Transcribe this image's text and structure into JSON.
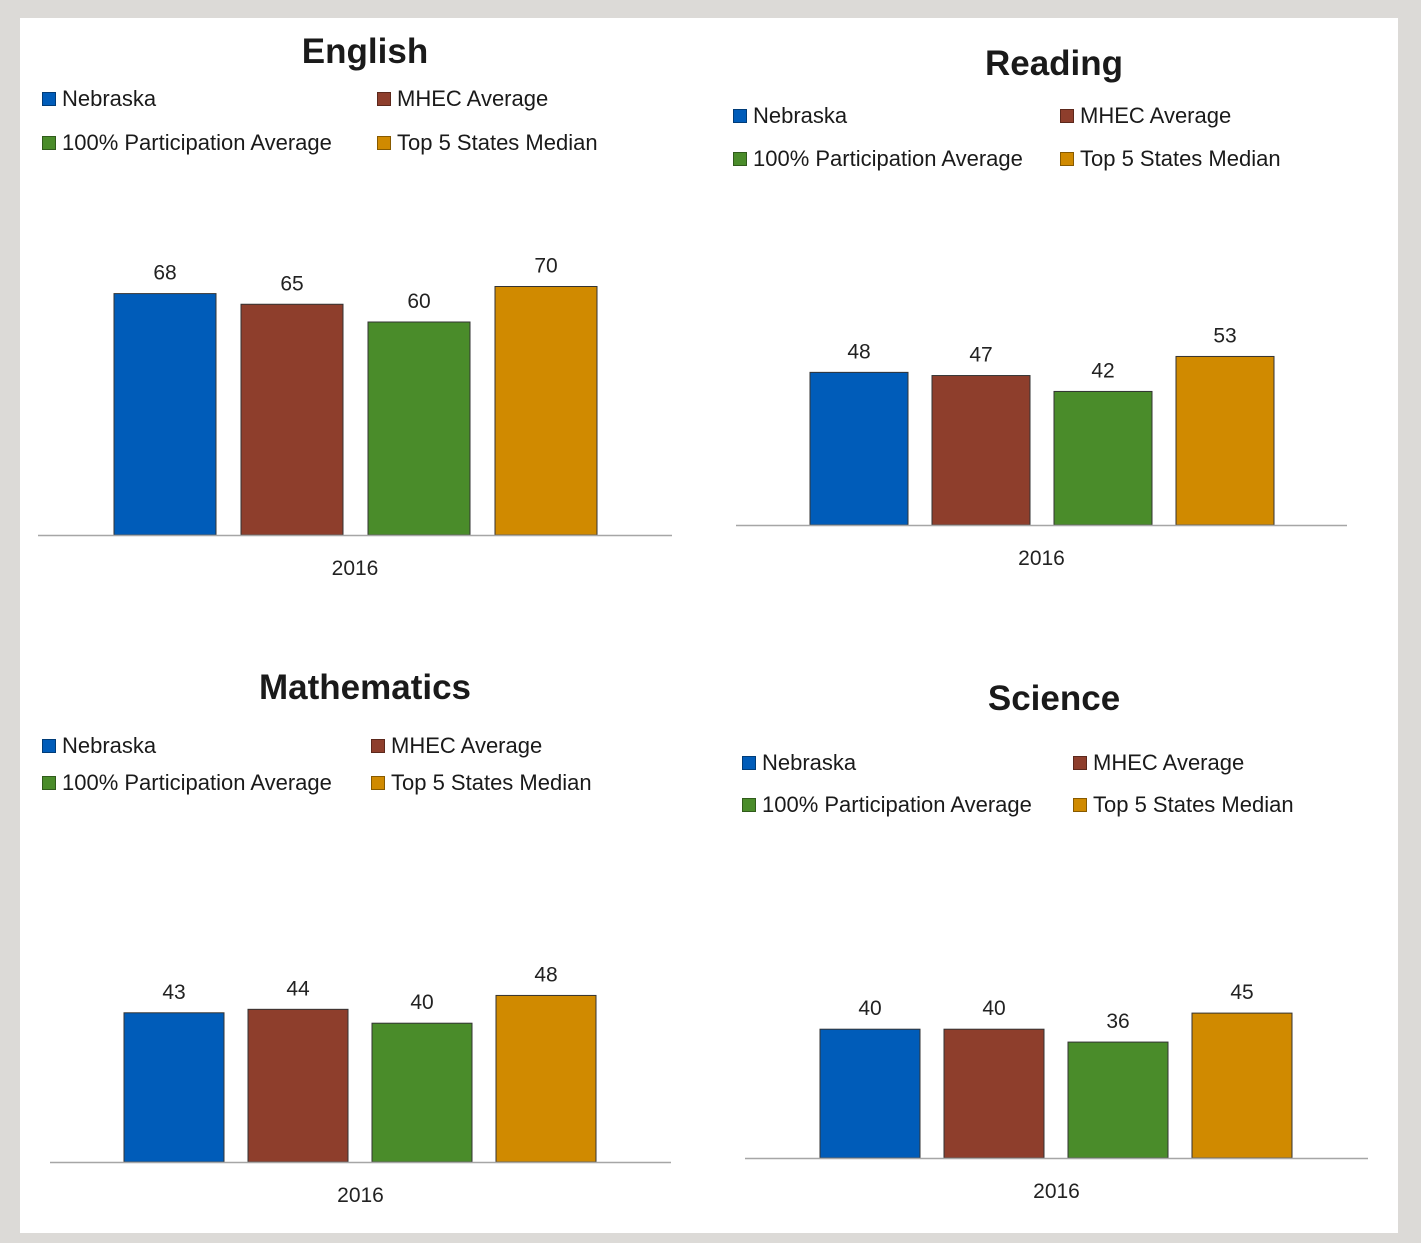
{
  "series_colors": {
    "Nebraska": "#005cb9",
    "MHEC Average": "#8e3e2c",
    "100% Participation Average": "#4a8c2a",
    "Top 5 States Median": "#d08a00"
  },
  "chart_data": [
    {
      "type": "bar",
      "title": "English",
      "categories": [
        "2016"
      ],
      "series": [
        {
          "name": "Nebraska",
          "values": [
            68
          ]
        },
        {
          "name": "MHEC Average",
          "values": [
            65
          ]
        },
        {
          "name": "100% Participation Average",
          "values": [
            60
          ]
        },
        {
          "name": "Top 5 States Median",
          "values": [
            70
          ]
        }
      ],
      "ylim": [
        0,
        80
      ],
      "grid": false,
      "legend_placement": "top"
    },
    {
      "type": "bar",
      "title": "Reading",
      "categories": [
        "2016"
      ],
      "series": [
        {
          "name": "Nebraska",
          "values": [
            48
          ]
        },
        {
          "name": "MHEC Average",
          "values": [
            47
          ]
        },
        {
          "name": "100% Participation Average",
          "values": [
            42
          ]
        },
        {
          "name": "Top 5 States Median",
          "values": [
            53
          ]
        }
      ],
      "ylim": [
        0,
        80
      ],
      "grid": false,
      "legend_placement": "top"
    },
    {
      "type": "bar",
      "title": "Mathematics",
      "categories": [
        "2016"
      ],
      "series": [
        {
          "name": "Nebraska",
          "values": [
            43
          ]
        },
        {
          "name": "MHEC Average",
          "values": [
            44
          ]
        },
        {
          "name": "100% Participation Average",
          "values": [
            40
          ]
        },
        {
          "name": "Top 5 States Median",
          "values": [
            48
          ]
        }
      ],
      "ylim": [
        0,
        80
      ],
      "grid": false,
      "legend_placement": "top"
    },
    {
      "type": "bar",
      "title": "Science",
      "categories": [
        "2016"
      ],
      "series": [
        {
          "name": "Nebraska",
          "values": [
            40
          ]
        },
        {
          "name": "MHEC Average",
          "values": [
            40
          ]
        },
        {
          "name": "100% Participation Average",
          "values": [
            36
          ]
        },
        {
          "name": "Top 5 States Median",
          "values": [
            45
          ]
        }
      ],
      "ylim": [
        0,
        80
      ],
      "grid": false,
      "legend_placement": "top"
    }
  ]
}
